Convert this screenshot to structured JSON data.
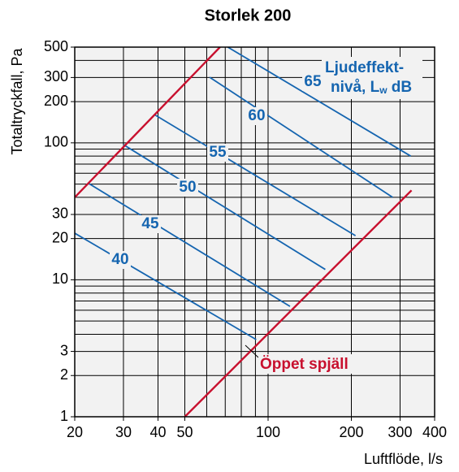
{
  "chart_data": {
    "type": "line",
    "title": "Storlek 200",
    "x_label": "Luftflöde, l/s",
    "y_label": "Totaltryckfall, Pa",
    "xscale": "log",
    "yscale": "log",
    "xlim": [
      20,
      400
    ],
    "ylim": [
      1,
      500
    ],
    "xticks": [
      20,
      30,
      40,
      50,
      100,
      200,
      300,
      400
    ],
    "yticks": [
      1,
      2,
      3,
      10,
      20,
      30,
      100,
      200,
      300,
      500
    ],
    "xgrid": [
      20,
      30,
      40,
      50,
      60,
      70,
      80,
      90,
      100,
      200,
      300,
      400
    ],
    "ygrid": [
      1,
      2,
      3,
      4,
      5,
      6,
      7,
      8,
      9,
      10,
      20,
      30,
      40,
      50,
      60,
      70,
      80,
      90,
      100,
      200,
      300,
      400,
      500
    ],
    "grid": true,
    "annotation": {
      "lines": [
        "Ljudeffekt-",
        "nivå, L"
      ],
      "sub": "w",
      "tail": " dB",
      "color": "#1565b0"
    },
    "series": [
      {
        "name": "40",
        "color": "#1565b0",
        "x": [
          20,
          90.6
        ],
        "values": [
          21.9,
          3.66
        ]
      },
      {
        "name": "45",
        "color": "#1565b0",
        "x": [
          22.3,
          120
        ],
        "values": [
          51,
          6.4
        ]
      },
      {
        "name": "50",
        "color": "#1565b0",
        "x": [
          30,
          161
        ],
        "values": [
          97,
          11.9
        ]
      },
      {
        "name": "55",
        "color": "#1565b0",
        "x": [
          38.8,
          207
        ],
        "values": [
          161,
          21
        ]
      },
      {
        "name": "60",
        "color": "#1565b0",
        "x": [
          61.5,
          282
        ],
        "values": [
          301,
          40
        ]
      },
      {
        "name": "65",
        "color": "#1565b0",
        "x": [
          71.5,
          328
        ],
        "values": [
          500,
          80
        ]
      },
      {
        "color": "#c8102e",
        "x": [
          20,
          67
        ],
        "values": [
          40,
          500
        ]
      },
      {
        "name": "Öppet spjäll",
        "color": "#c8102e",
        "x": [
          50,
          330
        ],
        "values": [
          1,
          45
        ]
      }
    ]
  }
}
